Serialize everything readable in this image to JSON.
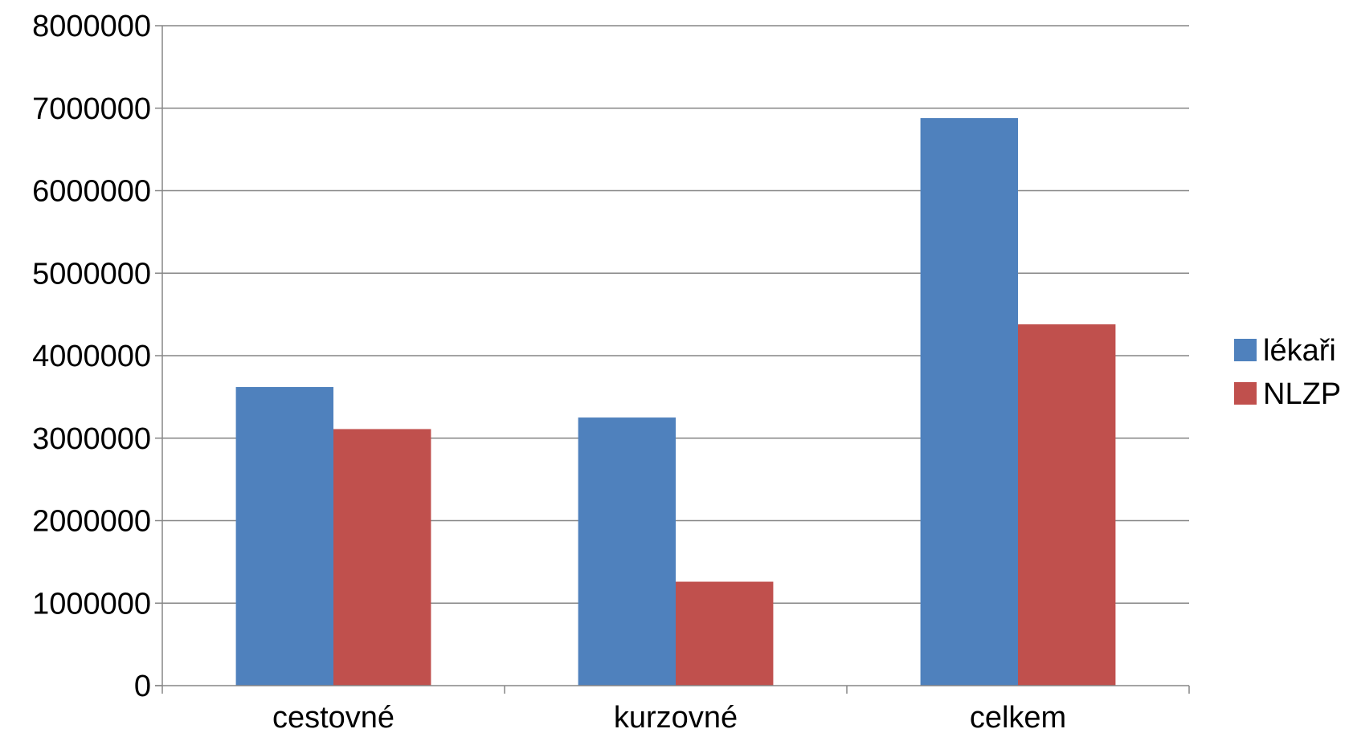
{
  "chart_data": {
    "type": "bar",
    "title": "",
    "xlabel": "",
    "ylabel": "",
    "categories": [
      "cestovné",
      "kurzovné",
      "celkem"
    ],
    "series": [
      {
        "name": "lékaři",
        "color": "#4F81BD",
        "values": [
          3620000,
          3250000,
          6880000
        ]
      },
      {
        "name": "NLZP",
        "color": "#C0504D",
        "values": [
          3110000,
          1260000,
          4380000
        ]
      }
    ],
    "ylim": [
      0,
      8000000
    ],
    "yticks": [
      "0",
      "1000000",
      "2000000",
      "3000000",
      "4000000",
      "5000000",
      "6000000",
      "7000000",
      "8000000"
    ],
    "grid": true,
    "legend_position": "right"
  }
}
